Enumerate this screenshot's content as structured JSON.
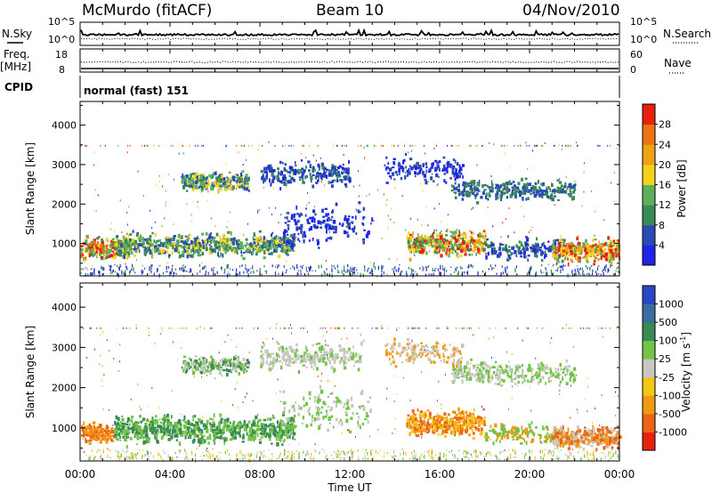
{
  "header": {
    "station": "McMurdo (fitACF)",
    "beam": "Beam 10",
    "date": "04/Nov/2010"
  },
  "noise_panel": {
    "left_label": "N.Sky",
    "right_label": "N.Search",
    "left_ticks": [
      "10^5",
      "10^0"
    ],
    "right_ticks": [
      "10^5",
      "10^0"
    ]
  },
  "freq_panel": {
    "left_label_top": "Freq.",
    "left_label_bottom": "[MHz]",
    "right_label": "Nave",
    "left_ticks": [
      "18",
      "8"
    ],
    "right_ticks": [
      "60",
      "0"
    ]
  },
  "cpid": {
    "label": "CPID",
    "value": "normal (fast) 151"
  },
  "chart_data": [
    {
      "type": "heatmap",
      "title": "",
      "ylabel": "Slant Range [km]",
      "xlabel": "",
      "ylim": [
        180,
        4600
      ],
      "yticks": [
        "1000",
        "2000",
        "3000",
        "4000"
      ],
      "colorbar": {
        "label": "Power [dB]",
        "ticks": [
          "4",
          "8",
          "12",
          "16",
          "20",
          "24",
          "28"
        ],
        "colors": [
          "#1f24e8",
          "#2b4bb4",
          "#3a8a55",
          "#5fb05a",
          "#f2d21a",
          "#f0a215",
          "#ef7214",
          "#e8200e"
        ]
      }
    },
    {
      "type": "heatmap",
      "title": "",
      "ylabel": "Slant Range [km]",
      "xlabel": "Time UT",
      "ylim": [
        180,
        4600
      ],
      "yticks": [
        "1000",
        "2000",
        "3000",
        "4000"
      ],
      "xticks": [
        "00:00",
        "04:00",
        "08:00",
        "12:00",
        "16:00",
        "20:00",
        "00:00"
      ],
      "colorbar": {
        "label": "Velocity [m s",
        "label_sup": "-1",
        "label_end": "]",
        "ticks": [
          "1000",
          "500",
          "100",
          "25",
          "-25",
          "-100",
          "-500",
          "-1000"
        ],
        "colors": [
          "#2848c8",
          "#3a6ea0",
          "#3a8a55",
          "#72c448",
          "#c8c8c0",
          "#f2c814",
          "#f09a14",
          "#ee6414",
          "#e8200e"
        ]
      }
    }
  ]
}
